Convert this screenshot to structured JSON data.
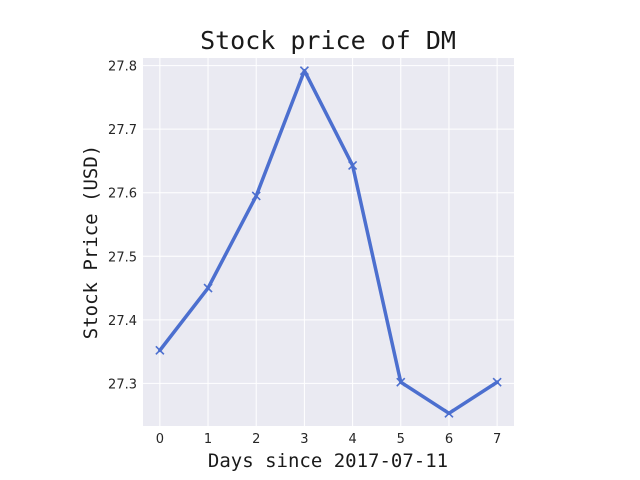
{
  "chart_data": {
    "type": "line",
    "title": "Stock price of DM",
    "xlabel": "Days since 2017-07-11",
    "ylabel": "Stock Price (USD)",
    "x": [
      0,
      1,
      2,
      3,
      4,
      5,
      6,
      7
    ],
    "series": [
      {
        "values": [
          27.352,
          27.45,
          27.595,
          27.792,
          27.643,
          27.302,
          27.253,
          27.302
        ]
      }
    ],
    "xlim": [
      -0.35,
      7.35
    ],
    "ylim": [
      27.233,
      27.812
    ],
    "xticks": [
      "0",
      "1",
      "2",
      "3",
      "4",
      "5",
      "6",
      "7"
    ],
    "yticks": [
      "27.3",
      "27.4",
      "27.5",
      "27.6",
      "27.7",
      "27.8"
    ],
    "grid": true,
    "marker": "x",
    "colors": {
      "line": "#4c6fcf",
      "plot_background": "#eaeaf2",
      "grid": "#ffffff"
    }
  }
}
